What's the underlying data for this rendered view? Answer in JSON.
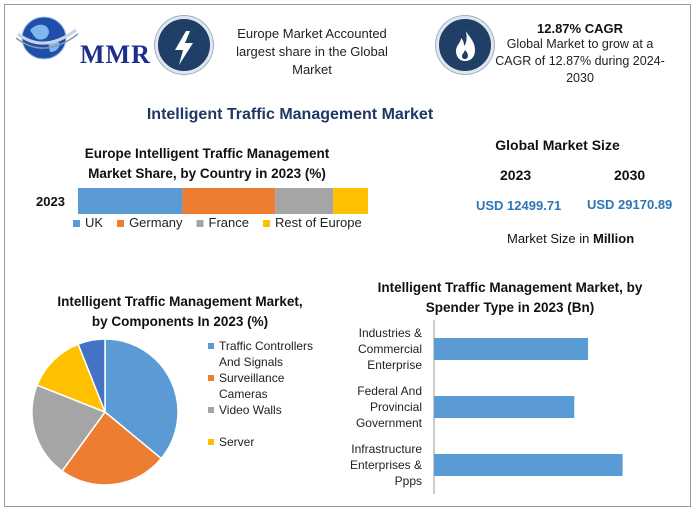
{
  "brand": {
    "logo_text": "MMR"
  },
  "header": {
    "europe_note": "Europe Market Accounted largest share in the Global Market",
    "cagr_title": "12.87% CAGR",
    "cagr_note": "Global Market to grow at a CAGR of 12.87% during 2024-2030",
    "bolt_icon": "lightning-icon",
    "flame_icon": "flame-icon"
  },
  "title": "Intelligent Traffic Management Market",
  "global": {
    "title": "Global Market Size",
    "year_a": "2023",
    "year_b": "2030",
    "value_a": "USD 12499.71",
    "value_b": "USD 29170.89",
    "unit_prefix": "Market Size in ",
    "unit_bold": "Million"
  },
  "chart_data": [
    {
      "type": "bar",
      "orientation": "horizontal-stacked",
      "title": "Europe Intelligent Traffic Management Market Share, by Country in 2023 (%)",
      "categories": [
        "2023"
      ],
      "series": [
        {
          "name": "UK",
          "values": [
            36
          ],
          "color": "#5b9bd5"
        },
        {
          "name": "Germany",
          "values": [
            32
          ],
          "color": "#ed7d31"
        },
        {
          "name": "France",
          "values": [
            20
          ],
          "color": "#a5a5a5"
        },
        {
          "name": "Rest of Europe",
          "values": [
            12
          ],
          "color": "#ffc000"
        }
      ],
      "legend": "bottom"
    },
    {
      "type": "pie",
      "title": "Intelligent Traffic Management Market, by Components In 2023 (%)",
      "series": [
        {
          "name": "Traffic Controllers And Signals",
          "values": [
            36
          ],
          "color": "#5b9bd5"
        },
        {
          "name": "Surveillance Cameras",
          "values": [
            24
          ],
          "color": "#ed7d31"
        },
        {
          "name": "Video Walls",
          "values": [
            21
          ],
          "color": "#a5a5a5"
        },
        {
          "name": "Server",
          "values": [
            13
          ],
          "color": "#ffc000"
        },
        {
          "name": "",
          "values": [
            6
          ],
          "color": "#4472c4"
        }
      ],
      "legend": "right"
    },
    {
      "type": "bar",
      "orientation": "horizontal",
      "title": "Intelligent Traffic Management Market, by Spender Type in 2023 (Bn)",
      "categories": [
        "Industries & Commercial Enterprise",
        "Federal And Provincial Government",
        "Infrastructure Enterprises & Ppps"
      ],
      "category_lines": [
        [
          "Industries &",
          "Commercial",
          "Enterprise"
        ],
        [
          "Federal And",
          "Provincial",
          "Government"
        ],
        [
          "Infrastructure",
          "Enterprises &",
          "Ppps"
        ]
      ],
      "values": [
        6.7,
        6.1,
        8.2
      ],
      "xlim": [
        0,
        10
      ],
      "color": "#5b9bd5"
    }
  ]
}
